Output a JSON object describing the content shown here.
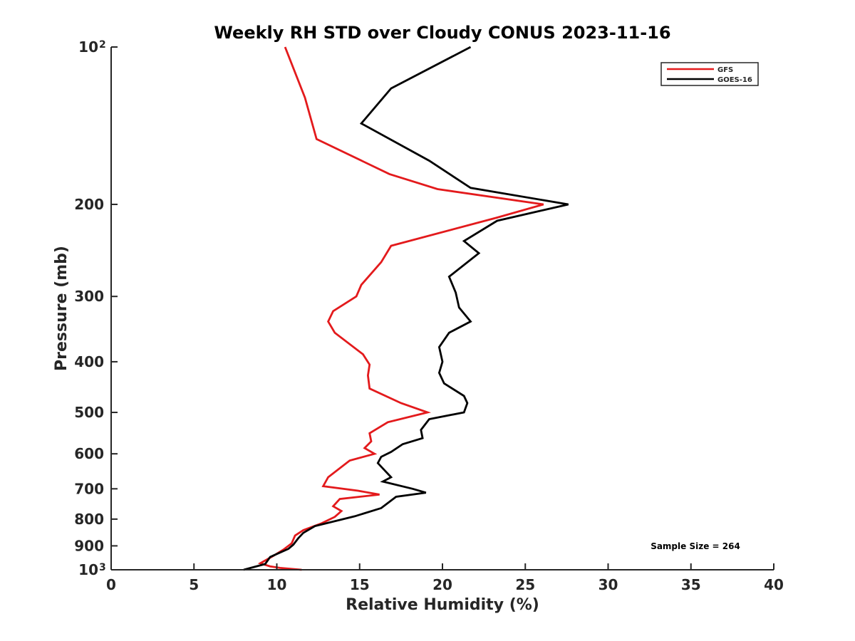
{
  "chart_data": {
    "type": "line",
    "title": "Weekly RH STD over Cloudy CONUS 2023-11-16",
    "xlabel": "Relative Humidity (%)",
    "ylabel": "Pressure (mb)",
    "xlim": [
      0,
      40
    ],
    "ylim": [
      100,
      1000
    ],
    "y_scale": "log",
    "y_reversed": true,
    "grid": false,
    "legend_position": "top-right",
    "x_ticks": [
      "0",
      "5",
      "10",
      "15",
      "20",
      "25",
      "30",
      "35",
      "40"
    ],
    "y_ticks": [
      {
        "value": 100,
        "label": "10",
        "sup": "2"
      },
      {
        "value": 200,
        "label": "200"
      },
      {
        "value": 300,
        "label": "300"
      },
      {
        "value": 400,
        "label": "400"
      },
      {
        "value": 500,
        "label": "500"
      },
      {
        "value": 600,
        "label": "600"
      },
      {
        "value": 700,
        "label": "700"
      },
      {
        "value": 800,
        "label": "800"
      },
      {
        "value": 900,
        "label": "900"
      },
      {
        "value": 1000,
        "label": "10",
        "sup": "3"
      }
    ],
    "series": [
      {
        "name": "GFS",
        "color": "#e31a1c",
        "points": [
          [
            10.5,
            100
          ],
          [
            11.7,
            125
          ],
          [
            12.4,
            150
          ],
          [
            16.8,
            175
          ],
          [
            19.7,
            187
          ],
          [
            26.1,
            200
          ],
          [
            23.3,
            212
          ],
          [
            16.9,
            240
          ],
          [
            16.3,
            258
          ],
          [
            15.1,
            285
          ],
          [
            14.8,
            300
          ],
          [
            13.4,
            320
          ],
          [
            13.1,
            335
          ],
          [
            13.5,
            352
          ],
          [
            15.2,
            387
          ],
          [
            15.6,
            405
          ],
          [
            15.5,
            425
          ],
          [
            15.6,
            450
          ],
          [
            17.5,
            480
          ],
          [
            19.1,
            500
          ],
          [
            16.7,
            522
          ],
          [
            15.6,
            548
          ],
          [
            15.7,
            568
          ],
          [
            15.3,
            585
          ],
          [
            15.9,
            600
          ],
          [
            14.4,
            618
          ],
          [
            13.1,
            665
          ],
          [
            12.8,
            692
          ],
          [
            14.9,
            706
          ],
          [
            16.2,
            718
          ],
          [
            13.8,
            732
          ],
          [
            13.4,
            756
          ],
          [
            13.9,
            772
          ],
          [
            13.5,
            792
          ],
          [
            12.7,
            815
          ],
          [
            11.6,
            840
          ],
          [
            11.1,
            860
          ],
          [
            10.9,
            890
          ],
          [
            10.4,
            915
          ],
          [
            9.8,
            940
          ],
          [
            9.3,
            960
          ],
          [
            9.0,
            972
          ],
          [
            9.6,
            985
          ],
          [
            10.2,
            992
          ],
          [
            11.5,
            1000
          ]
        ]
      },
      {
        "name": "GOES-16",
        "color": "#000000",
        "points": [
          [
            21.7,
            100
          ],
          [
            16.9,
            120
          ],
          [
            15.1,
            140
          ],
          [
            19.2,
            165
          ],
          [
            21.7,
            186
          ],
          [
            27.6,
            200
          ],
          [
            23.3,
            215
          ],
          [
            21.3,
            235
          ],
          [
            22.2,
            248
          ],
          [
            20.4,
            275
          ],
          [
            20.8,
            295
          ],
          [
            21.0,
            315
          ],
          [
            21.7,
            335
          ],
          [
            20.4,
            352
          ],
          [
            19.8,
            375
          ],
          [
            20.0,
            400
          ],
          [
            19.8,
            420
          ],
          [
            20.1,
            440
          ],
          [
            21.3,
            465
          ],
          [
            21.5,
            480
          ],
          [
            21.3,
            500
          ],
          [
            19.2,
            515
          ],
          [
            18.7,
            540
          ],
          [
            18.8,
            560
          ],
          [
            17.6,
            575
          ],
          [
            16.9,
            595
          ],
          [
            16.3,
            608
          ],
          [
            16.1,
            625
          ],
          [
            16.6,
            650
          ],
          [
            16.9,
            665
          ],
          [
            16.4,
            678
          ],
          [
            18.2,
            700
          ],
          [
            19.0,
            712
          ],
          [
            17.2,
            725
          ],
          [
            16.3,
            762
          ],
          [
            14.7,
            790
          ],
          [
            12.3,
            825
          ],
          [
            11.6,
            850
          ],
          [
            11.3,
            870
          ],
          [
            11.0,
            895
          ],
          [
            10.7,
            912
          ],
          [
            9.6,
            945
          ],
          [
            9.3,
            975
          ],
          [
            8.0,
            1000
          ]
        ]
      }
    ],
    "annotations": [
      "Sample Size = 264"
    ]
  }
}
